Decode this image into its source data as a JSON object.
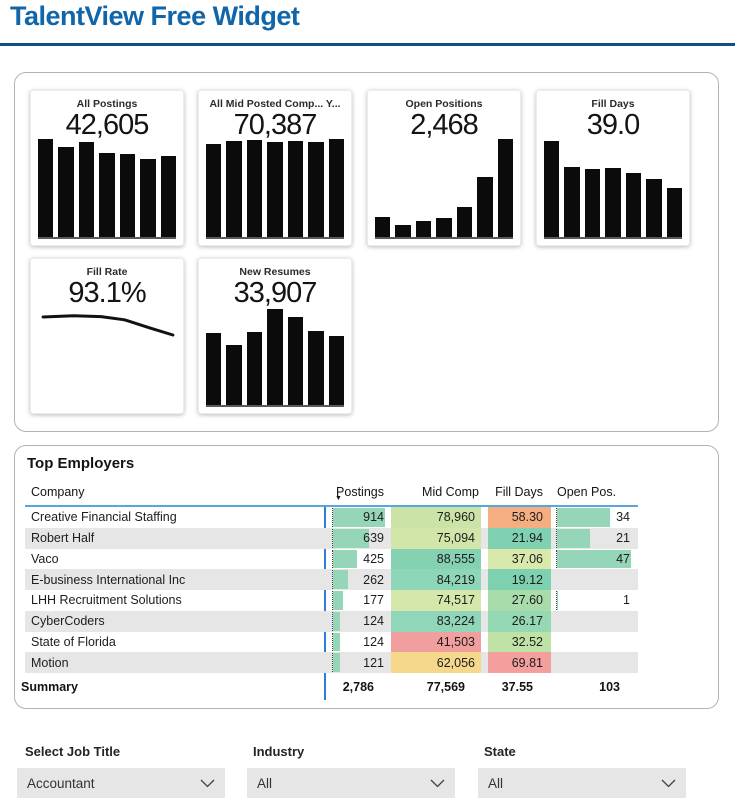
{
  "header": {
    "title": "TalentView Free Widget"
  },
  "icons": {
    "sort_desc": "▼"
  },
  "colors": {
    "title_blue": "#1165a9",
    "rule_blue": "#134e87",
    "header_underline_blue": "#58a6db",
    "axis_line_blue": "#2e7cd6",
    "databar_green": "#95d6b8",
    "zebra_gray": "#e6e6e6",
    "bar_black": "#0b0b0b",
    "dropdown_gray": "#e6e6e6",
    "heat_green": "#85d2b2",
    "heat_yellow_green": "#d2e6a9",
    "heat_amber": "#f6d88d",
    "heat_orange": "#f5ae80",
    "heat_red": "#f19f9e"
  },
  "kpi_cards": [
    {
      "title": "All Postings",
      "value": "42,605",
      "type": "bar",
      "bars_pct": [
        94,
        87,
        91,
        81,
        80,
        75,
        78
      ]
    },
    {
      "title": "All Mid Posted Comp...   Y...",
      "value": "70,387",
      "type": "bar",
      "bars_pct": [
        89,
        92,
        93,
        91,
        92,
        91,
        94
      ]
    },
    {
      "title": "Open Positions",
      "value": "2,468",
      "type": "bar",
      "bars_pct": [
        19,
        12,
        15,
        18,
        29,
        58,
        94
      ]
    },
    {
      "title": "Fill Days",
      "value": "39.0",
      "type": "bar",
      "bars_pct": [
        92,
        67,
        65,
        66,
        62,
        56,
        47
      ]
    },
    {
      "title": "Fill Rate",
      "value": "93.1%",
      "type": "line",
      "line_points": [
        [
          0.03,
          0.15
        ],
        [
          0.25,
          0.12
        ],
        [
          0.45,
          0.14
        ],
        [
          0.62,
          0.22
        ],
        [
          0.8,
          0.42
        ],
        [
          0.97,
          0.6
        ]
      ]
    },
    {
      "title": "New Resumes",
      "value": "33,907",
      "type": "bar",
      "bars_pct": [
        69,
        58,
        70,
        92,
        85,
        71,
        66
      ]
    }
  ],
  "table": {
    "title": "Top Employers",
    "columns": [
      "Company",
      "Postings",
      "Mid Comp",
      "Fill Days",
      "Open Pos."
    ],
    "sorted_by": "Postings descending",
    "rows": [
      {
        "company": "Creative Financial Staffing",
        "postings": "914",
        "postings_bar_pct": 100,
        "mid_comp": "78,960",
        "mid_comp_bg": "#cbe3a6",
        "fill_days": "58.30",
        "fill_days_bg": "#f5ae80",
        "open_pos": "34",
        "open_pos_bar_pct": 72
      },
      {
        "company": "Robert Half",
        "postings": "639",
        "postings_bar_pct": 70,
        "mid_comp": "75,094",
        "mid_comp_bg": "#d2e6a9",
        "fill_days": "21.94",
        "fill_days_bg": "#80d1b2",
        "open_pos": "21",
        "open_pos_bar_pct": 45
      },
      {
        "company": "Vaco",
        "postings": "425",
        "postings_bar_pct": 47,
        "mid_comp": "88,555",
        "mid_comp_bg": "#85d2b2",
        "fill_days": "37.06",
        "fill_days_bg": "#d9e9ac",
        "open_pos": "47",
        "open_pos_bar_pct": 100
      },
      {
        "company": "E-business International Inc",
        "postings": "262",
        "postings_bar_pct": 29,
        "mid_comp": "84,219",
        "mid_comp_bg": "#8ed6b8",
        "fill_days": "19.12",
        "fill_days_bg": "#7dd0b0",
        "open_pos": "",
        "open_pos_bar_pct": 0
      },
      {
        "company": "LHH Recruitment Solutions",
        "postings": "177",
        "postings_bar_pct": 19,
        "mid_comp": "74,517",
        "mid_comp_bg": "#d5e7ab",
        "fill_days": "27.60",
        "fill_days_bg": "#a8dcab",
        "open_pos": "1",
        "open_pos_bar_pct": 2
      },
      {
        "company": "CyberCoders",
        "postings": "124",
        "postings_bar_pct": 14,
        "mid_comp": "83,224",
        "mid_comp_bg": "#90d6b8",
        "fill_days": "26.17",
        "fill_days_bg": "#95d8b4",
        "open_pos": "",
        "open_pos_bar_pct": 0
      },
      {
        "company": "State of Florida",
        "postings": "124",
        "postings_bar_pct": 14,
        "mid_comp": "41,503",
        "mid_comp_bg": "#f19f9e",
        "fill_days": "32.52",
        "fill_days_bg": "#c0e2a7",
        "open_pos": "",
        "open_pos_bar_pct": 0
      },
      {
        "company": "Motion",
        "postings": "121",
        "postings_bar_pct": 13,
        "mid_comp": "62,056",
        "mid_comp_bg": "#f6d88d",
        "fill_days": "69.81",
        "fill_days_bg": "#f29f9d",
        "open_pos": "",
        "open_pos_bar_pct": 0
      }
    ],
    "summary": {
      "label": "Summary",
      "postings": "2,786",
      "mid_comp": "77,569",
      "fill_days": "37.55",
      "open_pos": "103"
    }
  },
  "filters": [
    {
      "label": "Select Job Title",
      "value": "Accountant"
    },
    {
      "label": "Industry",
      "value": "All"
    },
    {
      "label": "State",
      "value": "All"
    }
  ],
  "chart_data": [
    {
      "type": "bar",
      "title": "All Postings",
      "headline_value": 42605,
      "values_pct_of_max": [
        94,
        87,
        91,
        81,
        80,
        75,
        78
      ],
      "x_axis": "unlabeled time periods (7 bars)",
      "grid": false
    },
    {
      "type": "bar",
      "title": "All Mid Posted Comp... Y...",
      "headline_value": 70387,
      "values_pct_of_max": [
        89,
        92,
        93,
        91,
        92,
        91,
        94
      ],
      "x_axis": "unlabeled time periods (7 bars)",
      "grid": false
    },
    {
      "type": "bar",
      "title": "Open Positions",
      "headline_value": 2468,
      "values_pct_of_max": [
        19,
        12,
        15,
        18,
        29,
        58,
        94
      ],
      "x_axis": "unlabeled time periods (7 bars)",
      "grid": false
    },
    {
      "type": "bar",
      "title": "Fill Days",
      "headline_value": 39.0,
      "values_pct_of_max": [
        92,
        67,
        65,
        66,
        62,
        56,
        47
      ],
      "x_axis": "unlabeled time periods (7 bars)",
      "grid": false
    },
    {
      "type": "line",
      "title": "Fill Rate",
      "headline_value": "93.1%",
      "trend": "flat then slight decline",
      "points_norm_xy": [
        [
          0.03,
          0.15
        ],
        [
          0.25,
          0.12
        ],
        [
          0.45,
          0.14
        ],
        [
          0.62,
          0.22
        ],
        [
          0.8,
          0.42
        ],
        [
          0.97,
          0.6
        ]
      ],
      "grid": false
    },
    {
      "type": "bar",
      "title": "New Resumes",
      "headline_value": 33907,
      "values_pct_of_max": [
        69,
        58,
        70,
        92,
        85,
        71,
        66
      ],
      "x_axis": "unlabeled time periods (7 bars)",
      "grid": false
    },
    {
      "type": "table",
      "title": "Top Employers",
      "columns": [
        "Company",
        "Postings",
        "Mid Comp",
        "Fill Days",
        "Open Pos."
      ],
      "rows": [
        [
          "Creative Financial Staffing",
          914,
          78960,
          58.3,
          34
        ],
        [
          "Robert Half",
          639,
          75094,
          21.94,
          21
        ],
        [
          "Vaco",
          425,
          88555,
          37.06,
          47
        ],
        [
          "E-business International Inc",
          262,
          84219,
          19.12,
          null
        ],
        [
          "LHH Recruitment Solutions",
          177,
          74517,
          27.6,
          1
        ],
        [
          "CyberCoders",
          124,
          83224,
          26.17,
          null
        ],
        [
          "State of Florida",
          124,
          41503,
          32.52,
          null
        ],
        [
          "Motion",
          121,
          62056,
          69.81,
          null
        ]
      ],
      "summary_row": [
        "Summary",
        2786,
        77569,
        37.55,
        103
      ]
    }
  ]
}
